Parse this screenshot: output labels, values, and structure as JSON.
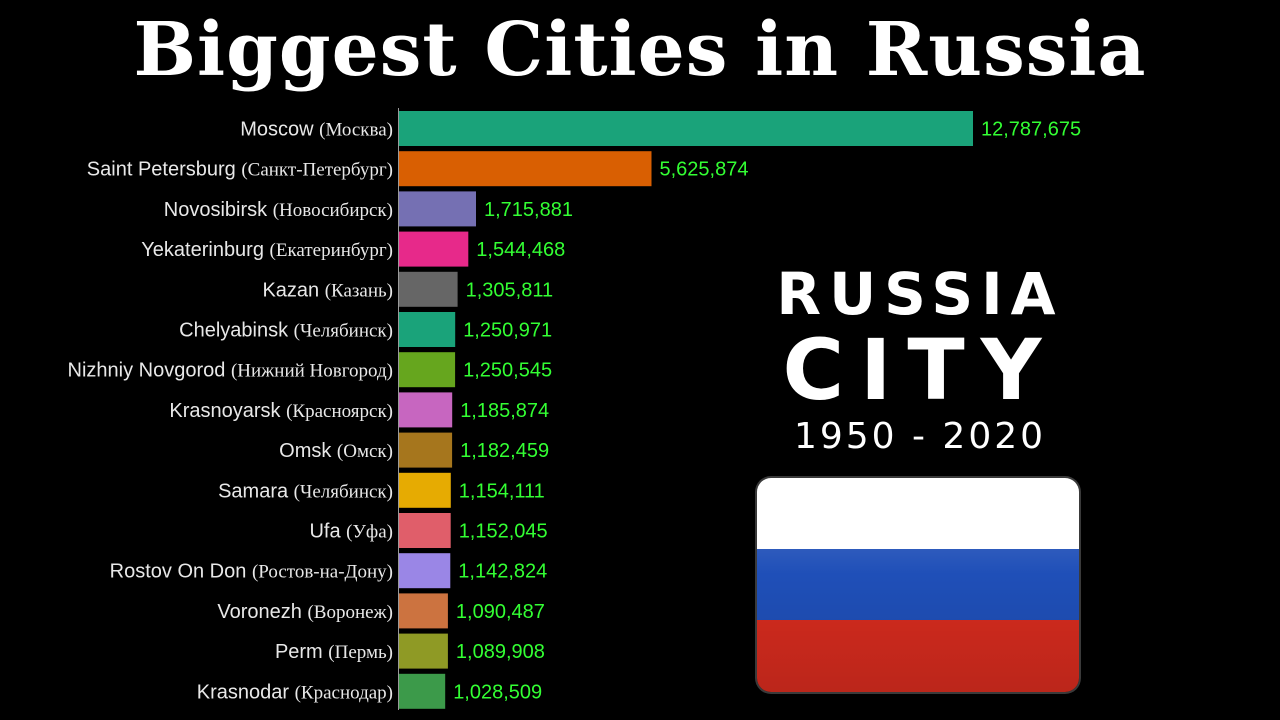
{
  "header": {
    "title": "Biggest Cities in Russia"
  },
  "side_title": {
    "line1": "RUSSIA",
    "line2": "CITY",
    "years": "1950 - 2020"
  },
  "flag": {
    "name": "russia-flag",
    "colors": [
      "#ffffff",
      "#1f4fb8",
      "#d52b1e"
    ]
  },
  "chart_data": {
    "type": "bar",
    "orientation": "horizontal",
    "title": "Biggest Cities in Russia",
    "xlabel": "",
    "ylabel": "",
    "xlim": [
      0,
      15000000
    ],
    "grid": false,
    "legend": "none",
    "categories": [
      {
        "name": "Moscow",
        "native": "(Москва)",
        "value": 12787675,
        "value_label": "12,787,675",
        "color": "#1aa37a"
      },
      {
        "name": "Saint Petersburg",
        "native": "(Санкт-Петербург)",
        "value": 5625874,
        "value_label": "5,625,874",
        "color": "#d95f02"
      },
      {
        "name": "Novosibirsk",
        "native": "(Новосибирск)",
        "value": 1715881,
        "value_label": "1,715,881",
        "color": "#7570b3"
      },
      {
        "name": "Yekaterinburg",
        "native": "(Екатеринбург)",
        "value": 1544468,
        "value_label": "1,544,468",
        "color": "#e7298a"
      },
      {
        "name": "Kazan",
        "native": "(Казань)",
        "value": 1305811,
        "value_label": "1,305,811",
        "color": "#666666"
      },
      {
        "name": "Chelyabinsk",
        "native": "(Челябинск)",
        "value": 1250971,
        "value_label": "1,250,971",
        "color": "#1aa37a"
      },
      {
        "name": "Nizhniy Novgorod",
        "native": "(Нижний Новгород)",
        "value": 1250545,
        "value_label": "1,250,545",
        "color": "#66a61e"
      },
      {
        "name": "Krasnoyarsk",
        "native": "(Красноярск)",
        "value": 1185874,
        "value_label": "1,185,874",
        "color": "#c766c0"
      },
      {
        "name": "Omsk",
        "native": "(Омск)",
        "value": 1182459,
        "value_label": "1,182,459",
        "color": "#a6761d"
      },
      {
        "name": "Samara",
        "native": "(Челябинск)",
        "value": 1154111,
        "value_label": "1,154,111",
        "color": "#e6ab02"
      },
      {
        "name": "Ufa",
        "native": "(Уфа)",
        "value": 1152045,
        "value_label": "1,152,045",
        "color": "#e05e6a"
      },
      {
        "name": "Rostov On Don",
        "native": "(Ростов-на-Дону)",
        "value": 1142824,
        "value_label": "1,142,824",
        "color": "#9a86e6"
      },
      {
        "name": "Voronezh",
        "native": "(Воронеж)",
        "value": 1090487,
        "value_label": "1,090,487",
        "color": "#cc7340"
      },
      {
        "name": "Perm",
        "native": "(Пермь)",
        "value": 1089908,
        "value_label": "1,089,908",
        "color": "#8f9a25"
      },
      {
        "name": "Krasnodar",
        "native": "(Краснодар)",
        "value": 1028509,
        "value_label": "1,028,509",
        "color": "#3c9a4a"
      }
    ]
  }
}
